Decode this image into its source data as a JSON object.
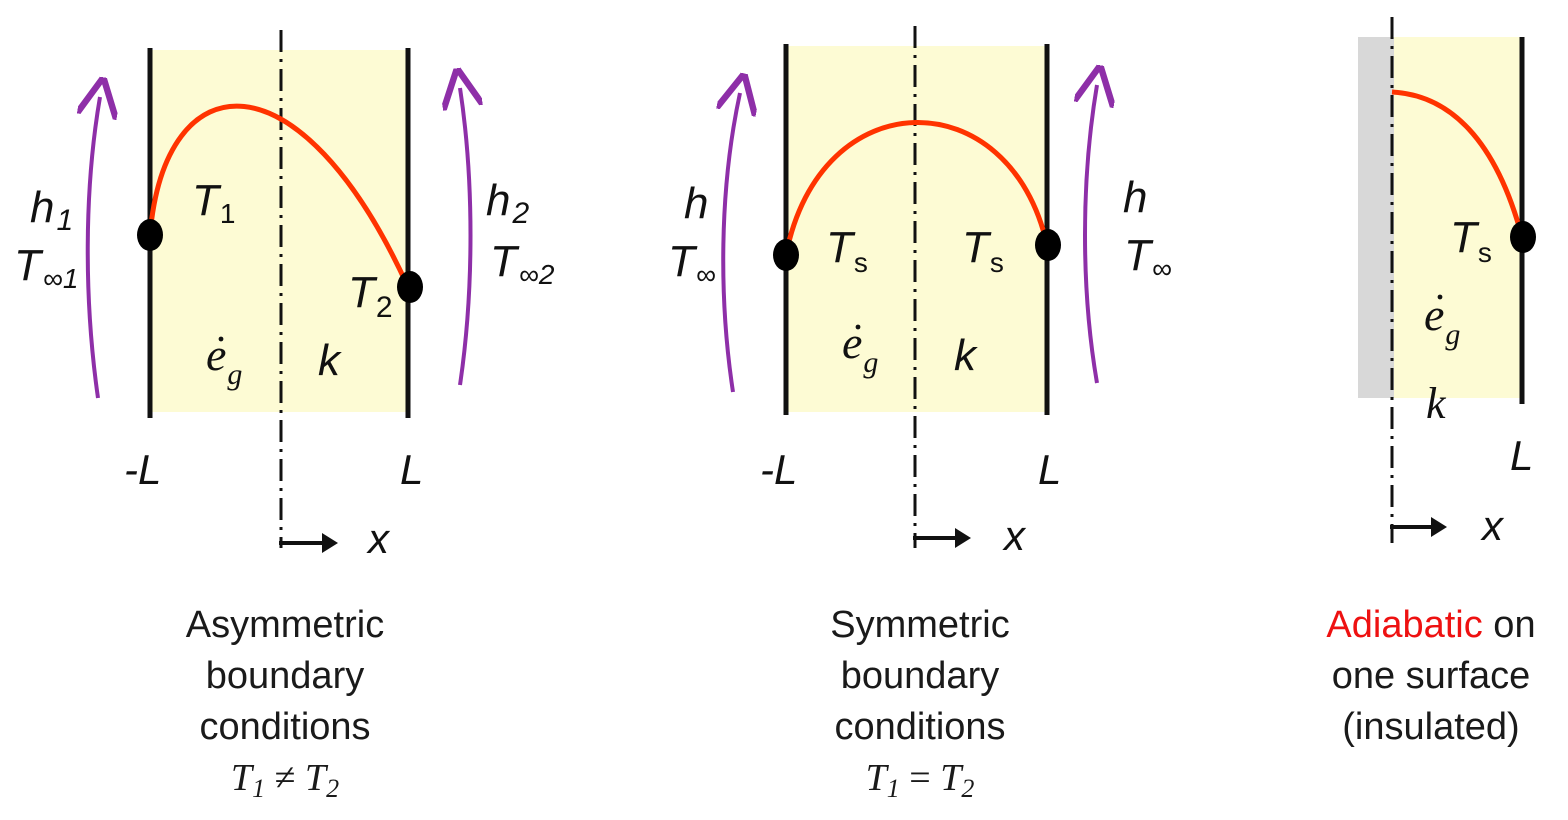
{
  "colors": {
    "wall_fill": "#fdfbd4",
    "profile": "#ff3300",
    "flow_arrow": "#8e2fa8",
    "insulation": "#d8d8d8",
    "highlight": "#ee1111"
  },
  "panels": [
    {
      "id": "asymmetric",
      "labels": {
        "h_left": "h",
        "h_left_sub": "1",
        "tinf_left": "T",
        "tinf_left_sub": "∞1",
        "h_right": "h",
        "h_right_sub": "2",
        "tinf_right": "T",
        "tinf_right_sub": "∞2",
        "t_left": "T",
        "t_left_sub": "1",
        "t_right": "T",
        "t_right_sub": "2",
        "egen": "e",
        "egen_sub": "g",
        "k": "k",
        "x_left": "-L",
        "x_right": "L",
        "x_axis": "x"
      },
      "caption": {
        "lines": [
          "Asymmetric",
          "boundary",
          "conditions"
        ],
        "eq": {
          "a": "T",
          "a_sub": "1",
          "op": "≠",
          "b": "T",
          "b_sub": "2"
        }
      }
    },
    {
      "id": "symmetric",
      "labels": {
        "h_left": "h",
        "tinf_left": "T",
        "tinf_left_sub": "∞",
        "h_right": "h",
        "tinf_right": "T",
        "tinf_right_sub": "∞",
        "t_left": "T",
        "t_left_sub": "s",
        "t_right": "T",
        "t_right_sub": "s",
        "egen": "e",
        "egen_sub": "g",
        "k": "k",
        "x_left": "-L",
        "x_right": "L",
        "x_axis": "x"
      },
      "caption": {
        "lines": [
          "Symmetric",
          "boundary",
          "conditions"
        ],
        "eq": {
          "a": "T",
          "a_sub": "1",
          "op": "=",
          "b": "T",
          "b_sub": "2"
        }
      }
    },
    {
      "id": "adiabatic",
      "labels": {
        "t_right": "T",
        "t_right_sub": "s",
        "egen": "e",
        "egen_sub": "g",
        "k": "k",
        "x_right": "L",
        "x_axis": "x"
      },
      "caption": {
        "highlight": "Adiabatic",
        "line1_rest": " on",
        "lines": [
          "one surface",
          "(insulated)"
        ]
      }
    }
  ]
}
